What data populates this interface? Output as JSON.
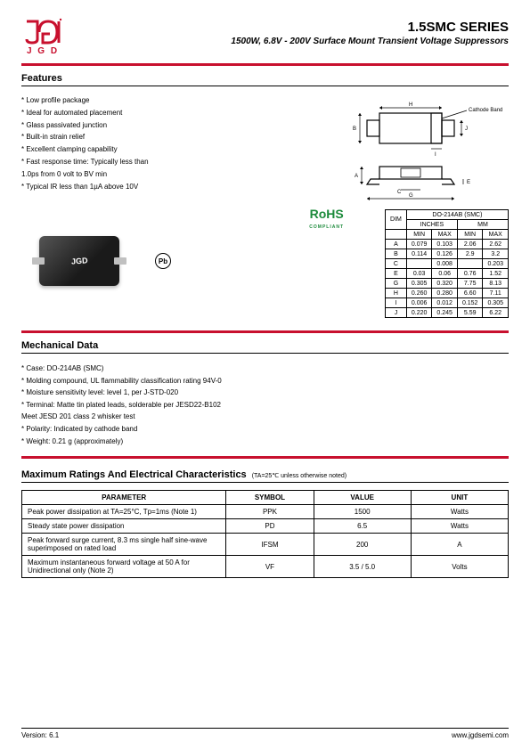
{
  "header": {
    "logo_text": "J G D",
    "title": "1.5SMC SERIES",
    "subtitle": "1500W, 6.8V - 200V Surface Mount Transient Voltage Suppressors"
  },
  "features": {
    "heading": "Features",
    "items": [
      "* Low profile package",
      "* Ideal for automated placement",
      "* Glass passivated junction",
      "* Built-in strain relief",
      "* Excellent clamping capability",
      "* Fast response time: Typically less than",
      "  1.0ps from 0 volt to BV min",
      "* Typical IR less than 1µA above 10V"
    ]
  },
  "diagram": {
    "cathode_label": "Cathode Band"
  },
  "rohs": {
    "top": "RoHS",
    "bottom": "COMPLIANT"
  },
  "chip_mark": "JGD",
  "pb_symbol": "Pb",
  "dim_table": {
    "title": "DO-214AB (SMC)",
    "group1": "INCHES",
    "group2": "MM",
    "dim": "DIM",
    "min": "MIN",
    "max": "MAX",
    "rows": [
      [
        "A",
        "0.079",
        "0.103",
        "2.06",
        "2.62"
      ],
      [
        "B",
        "0.114",
        "0.126",
        "2.9",
        "3.2"
      ],
      [
        "C",
        "",
        "0.008",
        "",
        "0.203"
      ],
      [
        "E",
        "0.03",
        "0.06",
        "0.76",
        "1.52"
      ],
      [
        "G",
        "0.305",
        "0.320",
        "7.75",
        "8.13"
      ],
      [
        "H",
        "0.260",
        "0.280",
        "6.60",
        "7.11"
      ],
      [
        "I",
        "0.006",
        "0.012",
        "0.152",
        "0.305"
      ],
      [
        "J",
        "0.220",
        "0.245",
        "5.59",
        "6.22"
      ]
    ]
  },
  "mechanical": {
    "heading": "Mechanical Data",
    "items": [
      "* Case: DO-214AB (SMC)",
      "* Molding compound, UL flammability classification rating 94V-0",
      "* Moisture sensitivity level: level 1, per J-STD-020",
      "* Terminal: Matte tin plated leads, solderable per JESD22-B102",
      "  Meet JESD 201 class 2 whisker test",
      "* Polarity: Indicated by cathode band",
      "* Weight: 0.21 g (approximately)"
    ]
  },
  "maxratings": {
    "heading": "Maximum Ratings And Electrical Characteristics",
    "note": "(TA=25℃ unless otherwise noted)",
    "cols": [
      "PARAMETER",
      "SYMBOL",
      "VALUE",
      "UNIT"
    ],
    "rows": [
      {
        "param": "Peak power dissipation at TA=25°C, Tp=1ms (Note 1)",
        "sym": "PPK",
        "val": "1500",
        "unit": "Watts"
      },
      {
        "param": "Steady state power dissipation",
        "sym": "PD",
        "val": "6.5",
        "unit": "Watts"
      },
      {
        "param": "Peak forward surge current, 8.3 ms single half sine-wave superimposed on rated load",
        "sym": "IFSM",
        "val": "200",
        "unit": "A"
      },
      {
        "param": "Maximum instantaneous forward voltage at 50 A for Unidirectional only (Note 2)",
        "sym": "VF",
        "val": "3.5 / 5.0",
        "unit": "Volts"
      }
    ]
  },
  "footer": {
    "left": "Version: 6.1",
    "right": "www.jgdsemi.com"
  },
  "colors": {
    "accent": "#c8102e",
    "green": "#1b8a3a"
  }
}
